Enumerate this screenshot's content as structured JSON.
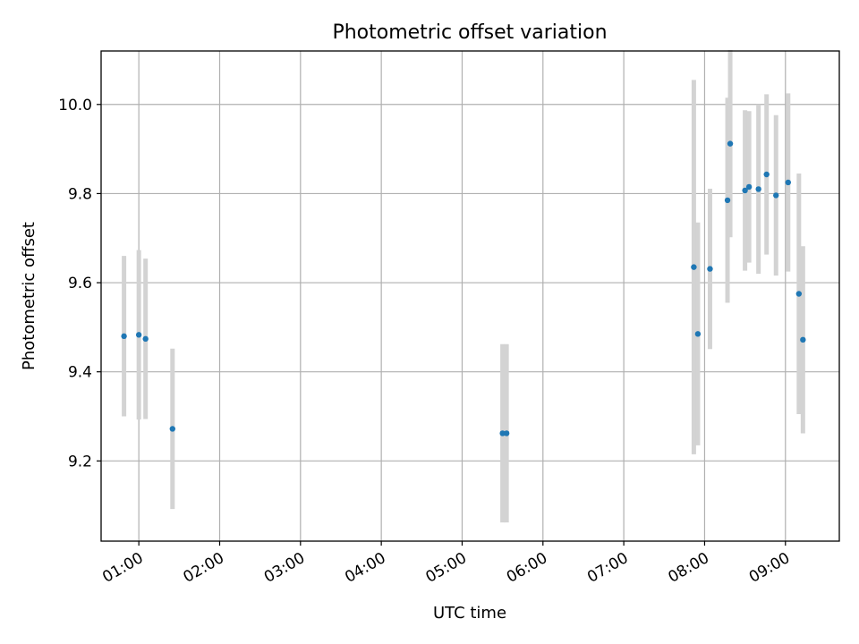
{
  "chart_data": {
    "type": "scatter",
    "title": "Photometric offset variation",
    "xlabel": "UTC time",
    "ylabel": "Photometric offset",
    "x_ticks": [
      "01:00",
      "02:00",
      "03:00",
      "04:00",
      "05:00",
      "06:00",
      "07:00",
      "08:00",
      "09:00"
    ],
    "y_ticks": [
      9.2,
      9.4,
      9.6,
      9.8,
      10.0
    ],
    "xlim": [
      "00:32",
      "09:40"
    ],
    "ylim": [
      9.02,
      10.12
    ],
    "grid": true,
    "colors": {
      "points": "#1f77b4",
      "errorbars": "#d3d3d3"
    },
    "points": [
      {
        "x": "00:49",
        "y": 9.48,
        "err": 0.18
      },
      {
        "x": "01:00",
        "y": 9.483,
        "err": 0.19
      },
      {
        "x": "01:05",
        "y": 9.474,
        "err": 0.18
      },
      {
        "x": "01:25",
        "y": 9.272,
        "err": 0.18
      },
      {
        "x": "05:30",
        "y": 9.262,
        "err": 0.2
      },
      {
        "x": "05:33",
        "y": 9.262,
        "err": 0.2
      },
      {
        "x": "07:52",
        "y": 9.635,
        "err": 0.42
      },
      {
        "x": "07:55",
        "y": 9.485,
        "err": 0.25
      },
      {
        "x": "08:04",
        "y": 9.631,
        "err": 0.18
      },
      {
        "x": "08:17",
        "y": 9.785,
        "err": 0.23
      },
      {
        "x": "08:19",
        "y": 9.912,
        "err": 0.21
      },
      {
        "x": "08:30",
        "y": 9.807,
        "err": 0.18
      },
      {
        "x": "08:33",
        "y": 9.815,
        "err": 0.17
      },
      {
        "x": "08:40",
        "y": 9.81,
        "err": 0.19
      },
      {
        "x": "08:46",
        "y": 9.843,
        "err": 0.18
      },
      {
        "x": "08:53",
        "y": 9.796,
        "err": 0.18
      },
      {
        "x": "09:02",
        "y": 9.825,
        "err": 0.2
      },
      {
        "x": "09:10",
        "y": 9.575,
        "err": 0.27
      },
      {
        "x": "09:13",
        "y": 9.472,
        "err": 0.21
      }
    ]
  }
}
